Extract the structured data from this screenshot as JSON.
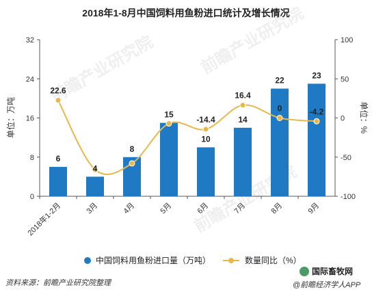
{
  "chart_data": {
    "type": "bar",
    "title": "2018年1-8月中国饲料用鱼粉进口统计及增长情况",
    "categories": [
      "2018年1-2月",
      "3月",
      "4月",
      "5月",
      "6月",
      "7月",
      "8月",
      "9月"
    ],
    "left_axis": {
      "label": "单位：万吨",
      "ylim": [
        0,
        32
      ],
      "ticks": [
        "0",
        "8",
        "16",
        "24",
        "32"
      ]
    },
    "right_axis": {
      "label": "单位：%",
      "ylim": [
        -100,
        100
      ],
      "ticks": [
        "-100",
        "-50",
        "0",
        "50",
        "100"
      ]
    },
    "series": [
      {
        "name": "中国饲料用鱼粉进口量（万吨）",
        "kind": "bar",
        "axis": "left",
        "color": "#1f7ac3",
        "values": [
          6,
          4,
          8,
          15,
          10,
          14,
          22,
          23
        ],
        "labels": [
          "6",
          "4",
          "8",
          "15",
          "10",
          "14",
          "22",
          "23"
        ]
      },
      {
        "name": "数量同比（%）",
        "kind": "line",
        "axis": "right",
        "color": "#e8b84a",
        "values": [
          22.6,
          -66,
          -58,
          -7,
          -14.4,
          16.4,
          0,
          -4.2
        ],
        "labels": [
          "22.6",
          "",
          "",
          "",
          "-14.4",
          "16.4",
          "0",
          "-4.2"
        ]
      }
    ],
    "legend_position": "bottom",
    "grid": false
  },
  "footer": {
    "source": "资料来源：前瞻产业研究院整理",
    "credit": "国际畜牧网",
    "credit2": "@前瞻经济学人APP"
  },
  "watermarks": [
    "前瞻产业研究院",
    "前瞻产业研究院",
    "前瞻产业研究院"
  ]
}
